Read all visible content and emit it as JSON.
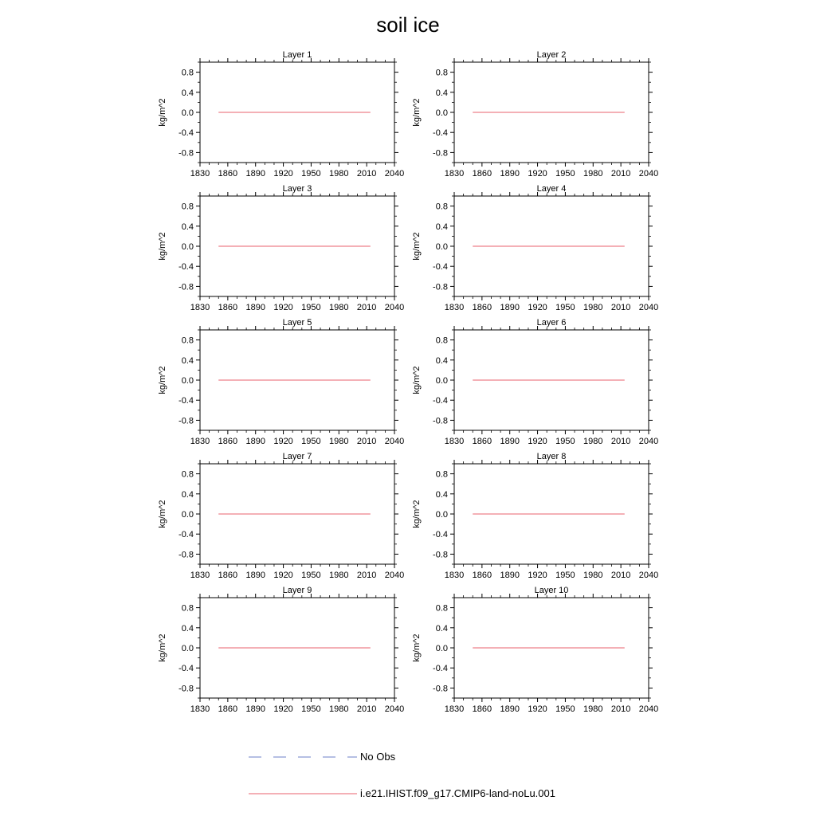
{
  "title": "soil ice",
  "legend": [
    {
      "label": "No Obs",
      "color": "#6e7fc8",
      "style": "dashed"
    },
    {
      "label": "i.e21.IHIST.f09_g17.CMIP6-land-noLu.001",
      "color": "#e8606e",
      "style": "solid"
    }
  ],
  "chart_data": [
    {
      "type": "line",
      "title": "Layer 1",
      "ylabel": "kg/m^2",
      "xlim": [
        1830,
        2040
      ],
      "ylim": [
        -1.0,
        1.0
      ],
      "xticks": [
        1830,
        1860,
        1890,
        1920,
        1950,
        1980,
        2010,
        2040
      ],
      "yticks": [
        0.8,
        0.4,
        0.0,
        -0.4,
        -0.8
      ],
      "series": [
        {
          "name": "i.e21.IHIST.f09_g17.CMIP6-land-noLu.001",
          "x": [
            1850,
            2014
          ],
          "y": [
            0.0,
            0.0
          ]
        }
      ]
    },
    {
      "type": "line",
      "title": "Layer 2",
      "ylabel": "kg/m^2",
      "xlim": [
        1830,
        2040
      ],
      "ylim": [
        -1.0,
        1.0
      ],
      "xticks": [
        1830,
        1860,
        1890,
        1920,
        1950,
        1980,
        2010,
        2040
      ],
      "yticks": [
        0.8,
        0.4,
        0.0,
        -0.4,
        -0.8
      ],
      "series": [
        {
          "name": "i.e21.IHIST.f09_g17.CMIP6-land-noLu.001",
          "x": [
            1850,
            2014
          ],
          "y": [
            0.0,
            0.0
          ]
        }
      ]
    },
    {
      "type": "line",
      "title": "Layer 3",
      "ylabel": "kg/m^2",
      "xlim": [
        1830,
        2040
      ],
      "ylim": [
        -1.0,
        1.0
      ],
      "xticks": [
        1830,
        1860,
        1890,
        1920,
        1950,
        1980,
        2010,
        2040
      ],
      "yticks": [
        0.8,
        0.4,
        0.0,
        -0.4,
        -0.8
      ],
      "series": [
        {
          "name": "i.e21.IHIST.f09_g17.CMIP6-land-noLu.001",
          "x": [
            1850,
            2014
          ],
          "y": [
            0.0,
            0.0
          ]
        }
      ]
    },
    {
      "type": "line",
      "title": "Layer 4",
      "ylabel": "kg/m^2",
      "xlim": [
        1830,
        2040
      ],
      "ylim": [
        -1.0,
        1.0
      ],
      "xticks": [
        1830,
        1860,
        1890,
        1920,
        1950,
        1980,
        2010,
        2040
      ],
      "yticks": [
        0.8,
        0.4,
        0.0,
        -0.4,
        -0.8
      ],
      "series": [
        {
          "name": "i.e21.IHIST.f09_g17.CMIP6-land-noLu.001",
          "x": [
            1850,
            2014
          ],
          "y": [
            0.0,
            0.0
          ]
        }
      ]
    },
    {
      "type": "line",
      "title": "Layer 5",
      "ylabel": "kg/m^2",
      "xlim": [
        1830,
        2040
      ],
      "ylim": [
        -1.0,
        1.0
      ],
      "xticks": [
        1830,
        1860,
        1890,
        1920,
        1950,
        1980,
        2010,
        2040
      ],
      "yticks": [
        0.8,
        0.4,
        0.0,
        -0.4,
        -0.8
      ],
      "series": [
        {
          "name": "i.e21.IHIST.f09_g17.CMIP6-land-noLu.001",
          "x": [
            1850,
            2014
          ],
          "y": [
            0.0,
            0.0
          ]
        }
      ]
    },
    {
      "type": "line",
      "title": "Layer 6",
      "ylabel": "kg/m^2",
      "xlim": [
        1830,
        2040
      ],
      "ylim": [
        -1.0,
        1.0
      ],
      "xticks": [
        1830,
        1860,
        1890,
        1920,
        1950,
        1980,
        2010,
        2040
      ],
      "yticks": [
        0.8,
        0.4,
        0.0,
        -0.4,
        -0.8
      ],
      "series": [
        {
          "name": "i.e21.IHIST.f09_g17.CMIP6-land-noLu.001",
          "x": [
            1850,
            2014
          ],
          "y": [
            0.0,
            0.0
          ]
        }
      ]
    },
    {
      "type": "line",
      "title": "Layer 7",
      "ylabel": "kg/m^2",
      "xlim": [
        1830,
        2040
      ],
      "ylim": [
        -1.0,
        1.0
      ],
      "xticks": [
        1830,
        1860,
        1890,
        1920,
        1950,
        1980,
        2010,
        2040
      ],
      "yticks": [
        0.8,
        0.4,
        0.0,
        -0.4,
        -0.8
      ],
      "series": [
        {
          "name": "i.e21.IHIST.f09_g17.CMIP6-land-noLu.001",
          "x": [
            1850,
            2014
          ],
          "y": [
            0.0,
            0.0
          ]
        }
      ]
    },
    {
      "type": "line",
      "title": "Layer 8",
      "ylabel": "kg/m^2",
      "xlim": [
        1830,
        2040
      ],
      "ylim": [
        -1.0,
        1.0
      ],
      "xticks": [
        1830,
        1860,
        1890,
        1920,
        1950,
        1980,
        2010,
        2040
      ],
      "yticks": [
        0.8,
        0.4,
        0.0,
        -0.4,
        -0.8
      ],
      "series": [
        {
          "name": "i.e21.IHIST.f09_g17.CMIP6-land-noLu.001",
          "x": [
            1850,
            2014
          ],
          "y": [
            0.0,
            0.0
          ]
        }
      ]
    },
    {
      "type": "line",
      "title": "Layer 9",
      "ylabel": "kg/m^2",
      "xlim": [
        1830,
        2040
      ],
      "ylim": [
        -1.0,
        1.0
      ],
      "xticks": [
        1830,
        1860,
        1890,
        1920,
        1950,
        1980,
        2010,
        2040
      ],
      "yticks": [
        0.8,
        0.4,
        0.0,
        -0.4,
        -0.8
      ],
      "series": [
        {
          "name": "i.e21.IHIST.f09_g17.CMIP6-land-noLu.001",
          "x": [
            1850,
            2014
          ],
          "y": [
            0.0,
            0.0
          ]
        }
      ]
    },
    {
      "type": "line",
      "title": "Layer 10",
      "ylabel": "kg/m^2",
      "xlim": [
        1830,
        2040
      ],
      "ylim": [
        -1.0,
        1.0
      ],
      "xticks": [
        1830,
        1860,
        1890,
        1920,
        1950,
        1980,
        2010,
        2040
      ],
      "yticks": [
        0.8,
        0.4,
        0.0,
        -0.4,
        -0.8
      ],
      "series": [
        {
          "name": "i.e21.IHIST.f09_g17.CMIP6-land-noLu.001",
          "x": [
            1850,
            2014
          ],
          "y": [
            0.0,
            0.0
          ]
        }
      ]
    }
  ]
}
